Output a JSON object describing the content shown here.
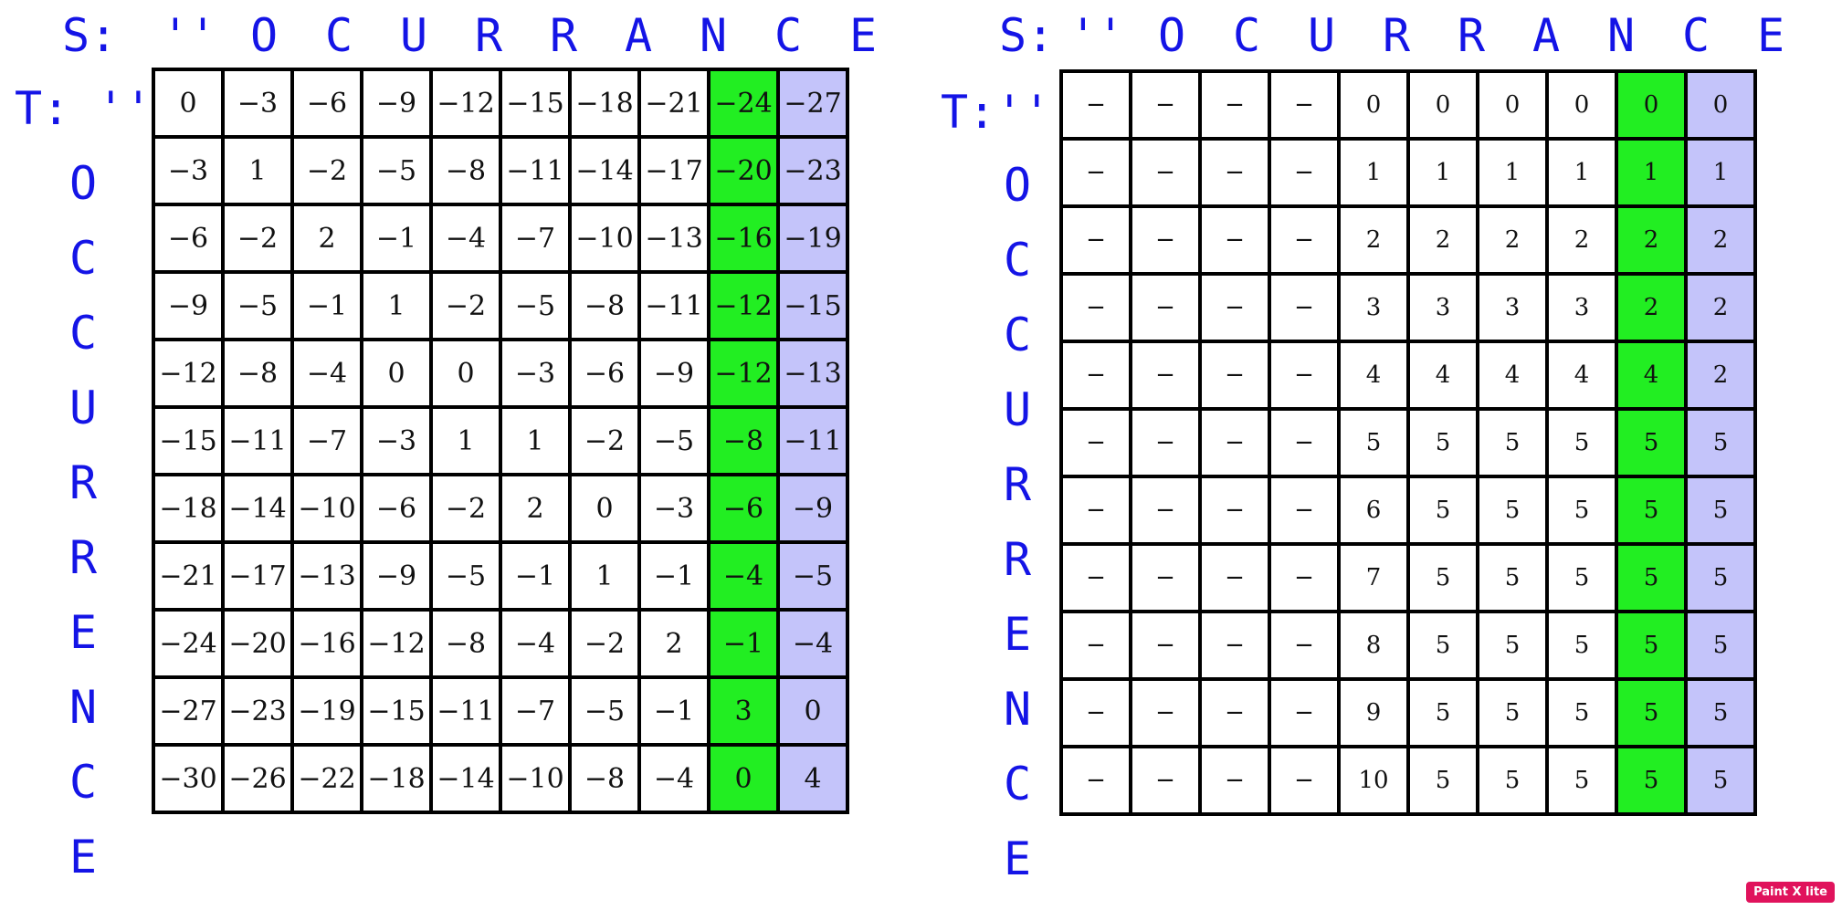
{
  "colors": {
    "label": "#1414e6",
    "highlight_green": "#22ee22",
    "highlight_purple": "#c4c4fa"
  },
  "left": {
    "s_prefix": "S:",
    "t_prefix": "T: ''",
    "col_headers": [
      "''",
      "O",
      "C",
      "U",
      "R",
      "R",
      "A",
      "N",
      "C",
      "E"
    ],
    "row_headers": [
      "O",
      "C",
      "C",
      "U",
      "R",
      "R",
      "E",
      "N",
      "C",
      "E"
    ],
    "rows": [
      [
        "0",
        "−3",
        "−6",
        "−9",
        "−12",
        "−15",
        "−18",
        "−21",
        "−24",
        "−27"
      ],
      [
        "−3",
        "1",
        "−2",
        "−5",
        "−8",
        "−11",
        "−14",
        "−17",
        "−20",
        "−23"
      ],
      [
        "−6",
        "−2",
        "2",
        "−1",
        "−4",
        "−7",
        "−10",
        "−13",
        "−16",
        "−19"
      ],
      [
        "−9",
        "−5",
        "−1",
        "1",
        "−2",
        "−5",
        "−8",
        "−11",
        "−12",
        "−15"
      ],
      [
        "−12",
        "−8",
        "−4",
        "0",
        "0",
        "−3",
        "−6",
        "−9",
        "−12",
        "−13"
      ],
      [
        "−15",
        "−11",
        "−7",
        "−3",
        "1",
        "1",
        "−2",
        "−5",
        "−8",
        "−11"
      ],
      [
        "−18",
        "−14",
        "−10",
        "−6",
        "−2",
        "2",
        "0",
        "−3",
        "−6",
        "−9"
      ],
      [
        "−21",
        "−17",
        "−13",
        "−9",
        "−5",
        "−1",
        "1",
        "−1",
        "−4",
        "−5"
      ],
      [
        "−24",
        "−20",
        "−16",
        "−12",
        "−8",
        "−4",
        "−2",
        "2",
        "−1",
        "−4"
      ],
      [
        "−27",
        "−23",
        "−19",
        "−15",
        "−11",
        "−7",
        "−5",
        "−1",
        "3",
        "0"
      ],
      [
        "−30",
        "−26",
        "−22",
        "−18",
        "−14",
        "−10",
        "−8",
        "−4",
        "0",
        "4"
      ]
    ]
  },
  "right": {
    "s_prefix": "S:",
    "t_prefix": "T:''",
    "col_headers": [
      "''",
      "O",
      "C",
      "U",
      "R",
      "R",
      "A",
      "N",
      "C",
      "E"
    ],
    "row_headers": [
      "O",
      "C",
      "C",
      "U",
      "R",
      "R",
      "E",
      "N",
      "C",
      "E"
    ],
    "rows": [
      [
        "−",
        "−",
        "−",
        "−",
        "0",
        "0",
        "0",
        "0",
        "0",
        "0"
      ],
      [
        "−",
        "−",
        "−",
        "−",
        "1",
        "1",
        "1",
        "1",
        "1",
        "1"
      ],
      [
        "−",
        "−",
        "−",
        "−",
        "2",
        "2",
        "2",
        "2",
        "2",
        "2"
      ],
      [
        "−",
        "−",
        "−",
        "−",
        "3",
        "3",
        "3",
        "3",
        "2",
        "2"
      ],
      [
        "−",
        "−",
        "−",
        "−",
        "4",
        "4",
        "4",
        "4",
        "4",
        "2"
      ],
      [
        "−",
        "−",
        "−",
        "−",
        "5",
        "5",
        "5",
        "5",
        "5",
        "5"
      ],
      [
        "−",
        "−",
        "−",
        "−",
        "6",
        "5",
        "5",
        "5",
        "5",
        "5"
      ],
      [
        "−",
        "−",
        "−",
        "−",
        "7",
        "5",
        "5",
        "5",
        "5",
        "5"
      ],
      [
        "−",
        "−",
        "−",
        "−",
        "8",
        "5",
        "5",
        "5",
        "5",
        "5"
      ],
      [
        "−",
        "−",
        "−",
        "−",
        "9",
        "5",
        "5",
        "5",
        "5",
        "5"
      ],
      [
        "−",
        "−",
        "−",
        "−",
        "10",
        "5",
        "5",
        "5",
        "5",
        "5"
      ]
    ]
  },
  "watermark": "Paint X lite"
}
